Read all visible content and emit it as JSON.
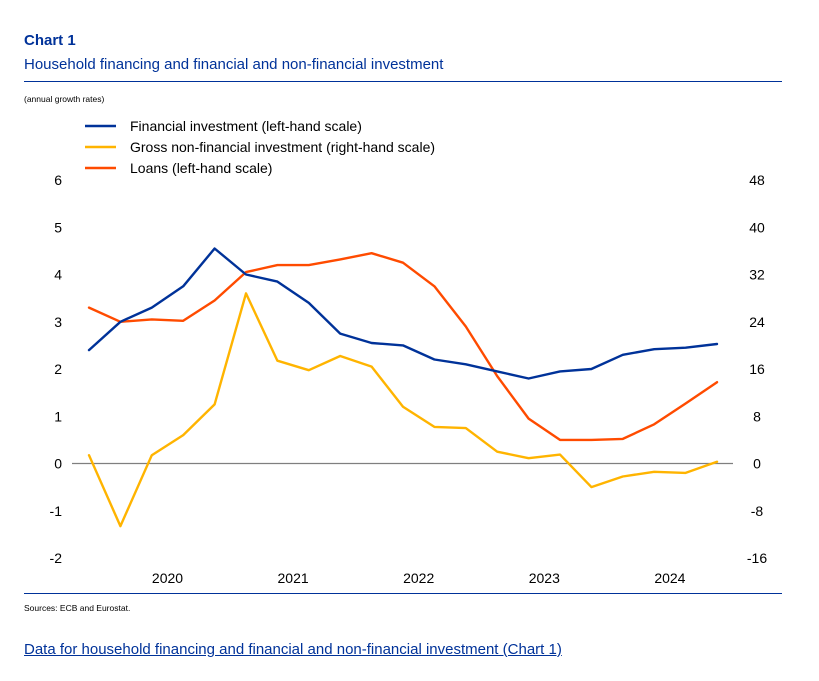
{
  "header": {
    "chart_label": "Chart 1",
    "title": "Household financing and financial and non-financial investment",
    "units": "(annual growth rates)"
  },
  "footer": {
    "sources": "Sources: ECB and Eurostat.",
    "data_link": "Data for household financing and financial and non-financial investment (Chart 1)"
  },
  "colors": {
    "financial_investment": "#003299",
    "gross_nonfinancial": "#FFB400",
    "loans": "#FF4B00",
    "zero_line": "#7f7f7f",
    "title": "#003299"
  },
  "chart_data": {
    "type": "line",
    "x": [
      "2019-Q4",
      "2020-Q1",
      "2020-Q2",
      "2020-Q3",
      "2020-Q4",
      "2021-Q1",
      "2021-Q2",
      "2021-Q3",
      "2021-Q4",
      "2022-Q1",
      "2022-Q2",
      "2022-Q3",
      "2022-Q4",
      "2023-Q1",
      "2023-Q2",
      "2023-Q3",
      "2023-Q4",
      "2024-Q1",
      "2024-Q2",
      "2024-Q3",
      "2024-Q4"
    ],
    "x_tick_labels": [
      "2020",
      "2021",
      "2022",
      "2023",
      "2024"
    ],
    "left_axis": {
      "ylim": [
        -2,
        6
      ],
      "ticks": [
        "6",
        "5",
        "4",
        "3",
        "2",
        "1",
        "0",
        "-1",
        "-2"
      ]
    },
    "right_axis": {
      "ylim": [
        -16,
        48
      ],
      "ticks": [
        "48",
        "40",
        "32",
        "24",
        "16",
        "8",
        "0",
        "-8",
        "-16"
      ]
    },
    "series": [
      {
        "name": "Financial investment (left-hand scale)",
        "axis": "left",
        "values": [
          2.4,
          3.0,
          3.3,
          3.75,
          4.55,
          4.0,
          3.85,
          3.4,
          2.75,
          2.55,
          2.5,
          2.2,
          2.1,
          1.95,
          1.8,
          1.95,
          2.0,
          2.3,
          2.42,
          2.45,
          2.53
        ]
      },
      {
        "name": "Gross non-financial investment (right-hand scale)",
        "axis": "right",
        "values": [
          1.4,
          -10.6,
          1.4,
          4.8,
          10.0,
          28.8,
          17.4,
          15.8,
          18.2,
          16.4,
          9.6,
          6.2,
          6.0,
          2.0,
          0.9,
          1.5,
          -4.0,
          -2.2,
          -1.4,
          -1.6,
          0.3
        ]
      },
      {
        "name": "Loans (left-hand scale)",
        "axis": "left",
        "values": [
          3.3,
          3.0,
          3.05,
          3.02,
          3.45,
          4.05,
          4.2,
          4.2,
          4.32,
          4.45,
          4.25,
          3.75,
          2.9,
          1.85,
          0.95,
          0.5,
          0.5,
          0.52,
          0.83,
          1.27,
          1.72
        ]
      }
    ],
    "legend_position": "top-left",
    "grid": false
  }
}
